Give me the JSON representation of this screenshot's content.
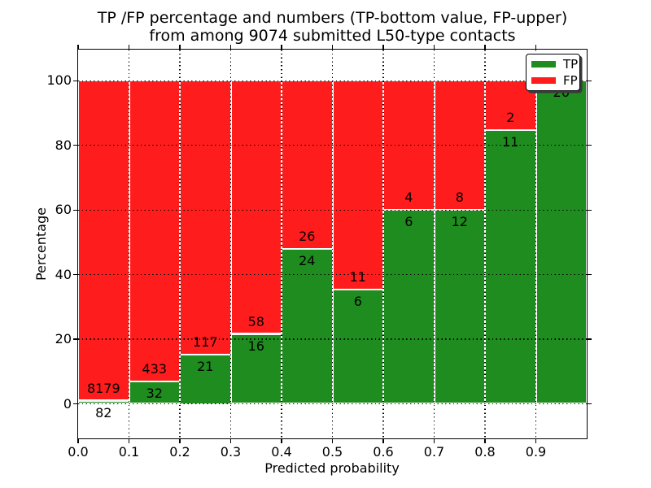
{
  "chart_data": {
    "type": "bar",
    "stacked": true,
    "title_line1": "TP /FP percentage and numbers (TP-bottom value, FP-upper)",
    "title_line2": "from among 9074 submitted L50-type contacts",
    "xlabel": "Predicted probability",
    "ylabel": "Percentage",
    "total_contacts": 9074,
    "x_tick_labels": [
      "0.0",
      "0.1",
      "0.2",
      "0.3",
      "0.4",
      "0.5",
      "0.6",
      "0.7",
      "0.8",
      "0.9"
    ],
    "y_tick_labels": [
      "0",
      "20",
      "40",
      "60",
      "80",
      "100"
    ],
    "y_tick_values": [
      0,
      20,
      40,
      60,
      80,
      100
    ],
    "xlim": [
      0.0,
      1.0
    ],
    "ylim": [
      -10.7,
      109.6
    ],
    "grid": "dotted",
    "bins": [
      {
        "range": "0.0-0.1",
        "tp": 82,
        "fp": 8179,
        "fp_label_shown": true
      },
      {
        "range": "0.1-0.2",
        "tp": 32,
        "fp": 433,
        "fp_label_shown": true
      },
      {
        "range": "0.2-0.3",
        "tp": 21,
        "fp": 117,
        "fp_label_shown": true
      },
      {
        "range": "0.3-0.4",
        "tp": 16,
        "fp": 58,
        "fp_label_shown": true
      },
      {
        "range": "0.4-0.5",
        "tp": 24,
        "fp": 26,
        "fp_label_shown": true
      },
      {
        "range": "0.5-0.6",
        "tp": 6,
        "fp": 11,
        "fp_label_shown": true
      },
      {
        "range": "0.6-0.7",
        "tp": 6,
        "fp": 4,
        "fp_label_shown": true
      },
      {
        "range": "0.7-0.8",
        "tp": 12,
        "fp": 8,
        "fp_label_shown": true
      },
      {
        "range": "0.8-0.9",
        "tp": 11,
        "fp": 2,
        "fp_label_shown": true
      },
      {
        "range": "0.9-1.0",
        "tp": 26,
        "fp": 0,
        "fp_label_shown": false
      }
    ],
    "legend": [
      {
        "label": "TP",
        "color": "#1e8c1e"
      },
      {
        "label": "FP",
        "color": "#ff1c1c"
      }
    ],
    "legend_position": "upper right",
    "colors": {
      "tp": "#1e8c1e",
      "fp": "#ff1c1c",
      "bar_edge": "#ffffff",
      "grid": "#000000",
      "spine": "#000000"
    }
  }
}
